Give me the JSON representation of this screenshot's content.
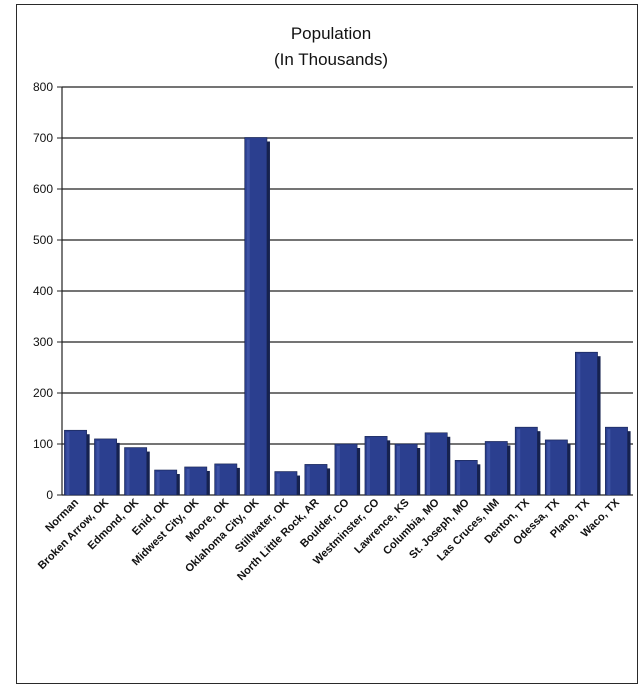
{
  "colors": {
    "bar_fill": "#2b3f8f",
    "bar_dark": "#16224f",
    "gridline": "#222222",
    "text": "#111111"
  },
  "chart_data": {
    "type": "bar",
    "title": "Population",
    "subtitle": "(In Thousands)",
    "xlabel": "",
    "ylabel": "",
    "ylim": [
      0,
      800
    ],
    "yticks": [
      0,
      100,
      200,
      300,
      400,
      500,
      600,
      700,
      800
    ],
    "grid": true,
    "legend": "none",
    "categories": [
      "Norman",
      "Broken Arrow, OK",
      "Edmond, OK",
      "Enid, OK",
      "Midwest City, OK",
      "Moore, OK",
      "Oklahoma City, OK",
      "Stillwater, OK",
      "North Little Rock, AR",
      "Boulder, CO",
      "Westminster, CO",
      "Lawrence, KS",
      "Columbia, MO",
      "St. Joseph, MO",
      "Las Cruces, NM",
      "Denton, TX",
      "Odessa, TX",
      "Plano, TX",
      "Waco, TX"
    ],
    "values": [
      127,
      110,
      93,
      49,
      55,
      61,
      701,
      46,
      60,
      100,
      115,
      100,
      122,
      68,
      105,
      133,
      108,
      280,
      133
    ]
  }
}
